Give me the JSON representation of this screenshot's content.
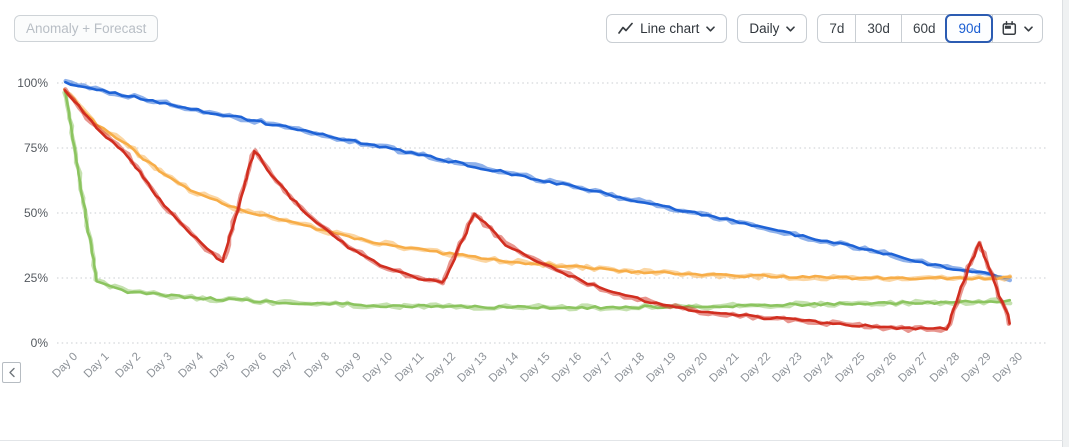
{
  "toolbar": {
    "anomaly_forecast_label": "Anomaly + Forecast",
    "chart_type_label": "Line chart",
    "granularity_label": "Daily",
    "ranges": [
      "7d",
      "30d",
      "60d",
      "90d"
    ],
    "selected_range": "90d"
  },
  "icons": {
    "chart_type": "line-chart-icon",
    "dropdowns": "chevron-down-icon",
    "date_picker": "calendar-icon",
    "pager": "chevron-left-icon"
  },
  "colors": {
    "accent_blue": "#1b5ed2",
    "selected_border": "#2c5cb2",
    "series_blue": "#1f63d6",
    "series_orange": "#f7ad48",
    "series_red": "#d12e20",
    "series_green": "#8bc45f",
    "grid": "#c9ccd0",
    "y_label": "#54595f",
    "x_label": "#8d9298"
  },
  "chart_data": {
    "type": "line",
    "style": "sketch",
    "grid": "dotted-horizontal",
    "legend": "none",
    "ylim": [
      0,
      100
    ],
    "y_ticks": [
      {
        "pct": 0,
        "label": "0%"
      },
      {
        "pct": 25,
        "label": "25%"
      },
      {
        "pct": 50,
        "label": "50%"
      },
      {
        "pct": 75,
        "label": "75%"
      },
      {
        "pct": 100,
        "label": "100%"
      }
    ],
    "x": [
      "Day 0",
      "Day 1",
      "Day 2",
      "Day 3",
      "Day 4",
      "Day 5",
      "Day 6",
      "Day 7",
      "Day 8",
      "Day 9",
      "Day 10",
      "Day 11",
      "Day 12",
      "Day 13",
      "Day 14",
      "Day 15",
      "Day 16",
      "Day 17",
      "Day 18",
      "Day 19",
      "Day 20",
      "Day 21",
      "Day 22",
      "Day 23",
      "Day 24",
      "Day 25",
      "Day 26",
      "Day 27",
      "Day 28",
      "Day 29",
      "Day 30"
    ],
    "series": [
      {
        "name": "blue",
        "color": "#1f63d6",
        "values": [
          100,
          97.5,
          95,
          92.5,
          90,
          88,
          85.5,
          83,
          80.5,
          78,
          75.5,
          73,
          70.5,
          68,
          65.5,
          63,
          60.5,
          58,
          55,
          52.5,
          50,
          47.5,
          45,
          42,
          39.5,
          37,
          34.5,
          31.5,
          29,
          27,
          25
        ]
      },
      {
        "name": "orange",
        "color": "#f7ad48",
        "values": [
          97,
          84,
          76,
          66,
          59,
          53.5,
          50,
          47,
          44,
          41,
          38.5,
          36.5,
          34.5,
          33,
          31.5,
          30.5,
          29.5,
          28.5,
          27.5,
          27,
          26.5,
          26,
          25.7,
          25.5,
          25.2,
          25,
          25,
          24.8,
          24.8,
          25,
          25
        ]
      },
      {
        "name": "green",
        "color": "#8bc45f",
        "values": [
          97,
          24,
          19.5,
          18.5,
          17.5,
          16.8,
          16.2,
          15.6,
          15.2,
          14.8,
          14.4,
          14.2,
          14,
          13.9,
          13.8,
          13.8,
          13.7,
          13.7,
          13.8,
          13.9,
          14,
          14.2,
          14.5,
          14.7,
          15,
          15.2,
          15.4,
          15.5,
          15.7,
          15.9,
          16
        ]
      },
      {
        "name": "red",
        "color": "#d12e20",
        "values": [
          97,
          83,
          72,
          55,
          42,
          31,
          74,
          58,
          46,
          37,
          30,
          25.5,
          23,
          50,
          38,
          31,
          26,
          21,
          17.5,
          14.5,
          12.5,
          11,
          10,
          9,
          8,
          7,
          6,
          5.3,
          5.5,
          39,
          8
        ]
      }
    ]
  }
}
